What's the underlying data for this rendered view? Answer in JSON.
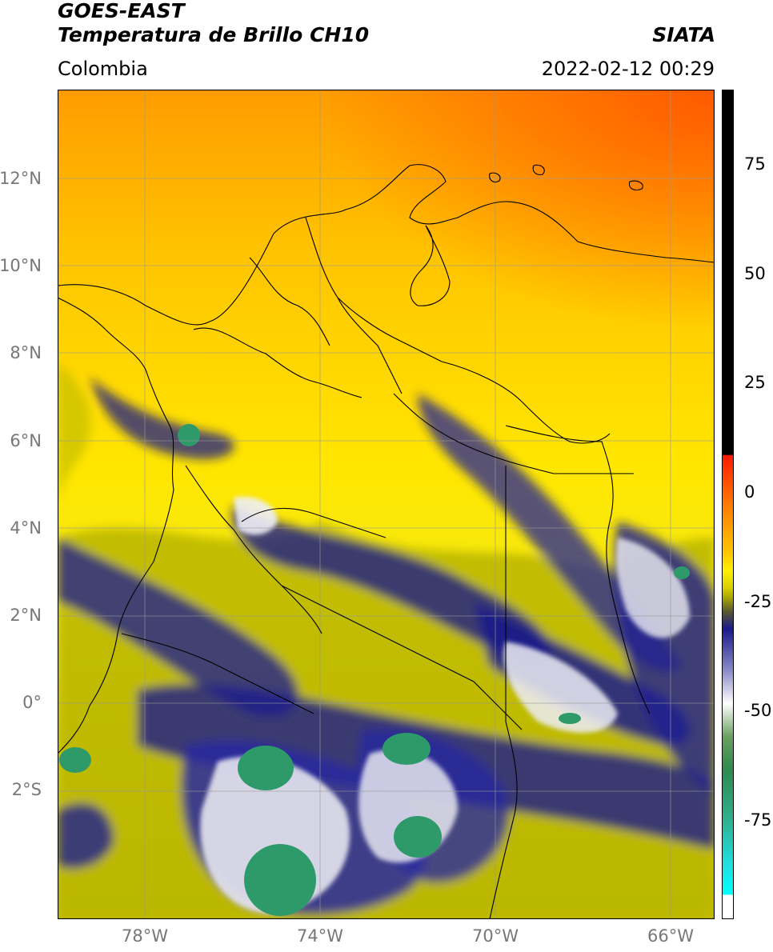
{
  "header": {
    "satellite": "GOES-EAST",
    "product": "Temperatura de Brillo CH10",
    "region": "Colombia",
    "agency": "SIATA",
    "datetime": "2022-02-12 00:29"
  },
  "map": {
    "lat_labels": [
      "12°N",
      "10°N",
      "8°N",
      "6°N",
      "4°N",
      "2°N",
      "0°",
      "2°S"
    ],
    "lat_values": [
      12,
      10,
      8,
      6,
      4,
      2,
      0,
      -2
    ],
    "lon_labels": [
      "78°W",
      "74°W",
      "70°W",
      "66°W"
    ],
    "lon_values": [
      -78,
      -74,
      -70,
      -66
    ],
    "lon_range": [
      -80,
      -65
    ],
    "lat_range": [
      -4.95,
      13.95
    ],
    "colors": {
      "hot": "#ff5a00",
      "warm": "#ffb300",
      "mild": "#ffe800",
      "olive": "#b8b400",
      "navy": "#1a1a8c",
      "white": "#f2f2f2",
      "green": "#2e9a6a",
      "coast": "#000000",
      "grid": "#999999"
    }
  },
  "colorbar": {
    "ticks": [
      "75",
      "50",
      "25",
      "0",
      "-25",
      "-50",
      "-75"
    ],
    "tick_values": [
      75,
      50,
      25,
      0,
      -25,
      -50,
      -75
    ],
    "range": [
      -100,
      90
    ],
    "units": ""
  }
}
